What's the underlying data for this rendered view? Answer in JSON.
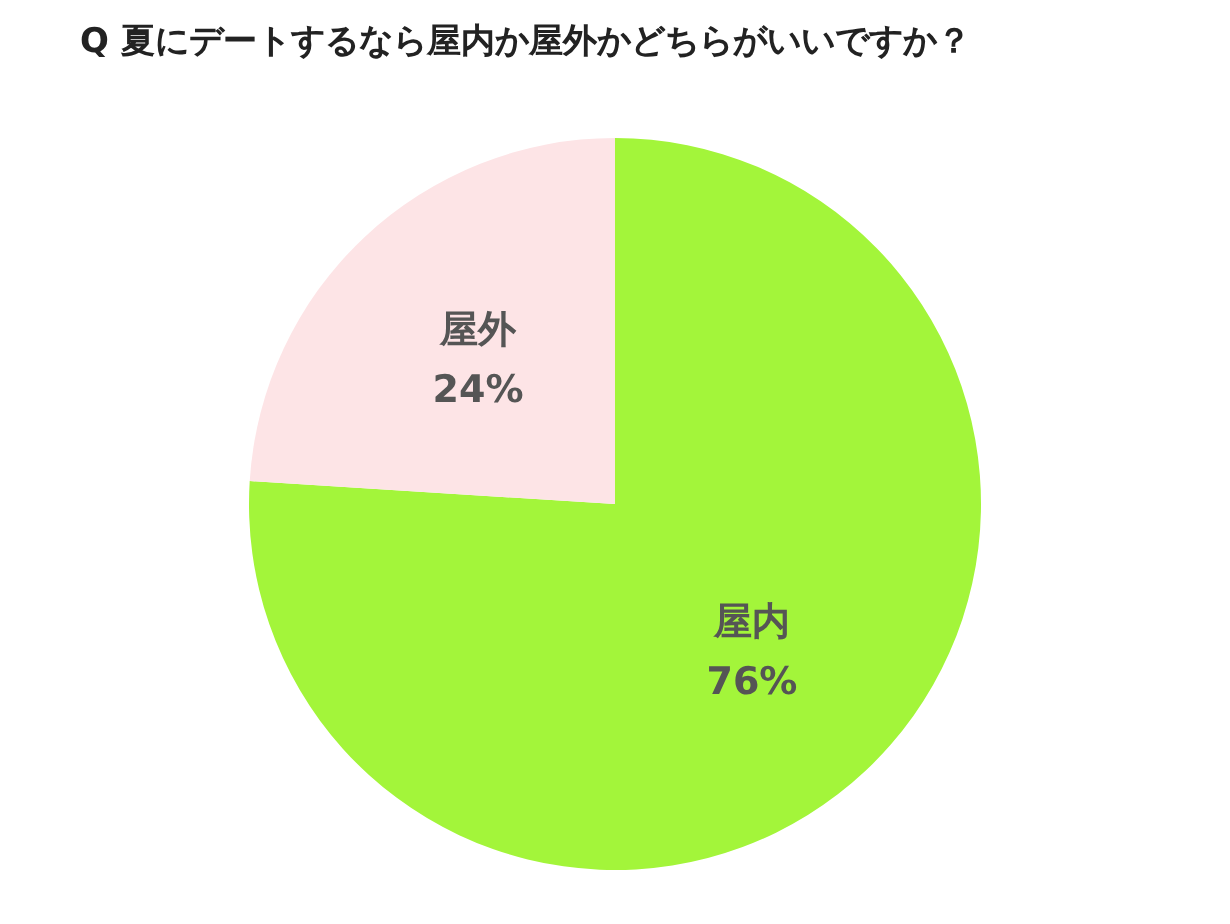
{
  "chart_data": {
    "type": "pie",
    "title": "Q 夏にデートするなら屋内か屋外かどちらがいいですか？",
    "categories": [
      "屋内",
      "屋外"
    ],
    "values": [
      76,
      24
    ],
    "value_labels": [
      "76%",
      "24%"
    ],
    "colors": [
      "#a3f53a",
      "#fde4e6"
    ],
    "legend": false
  }
}
